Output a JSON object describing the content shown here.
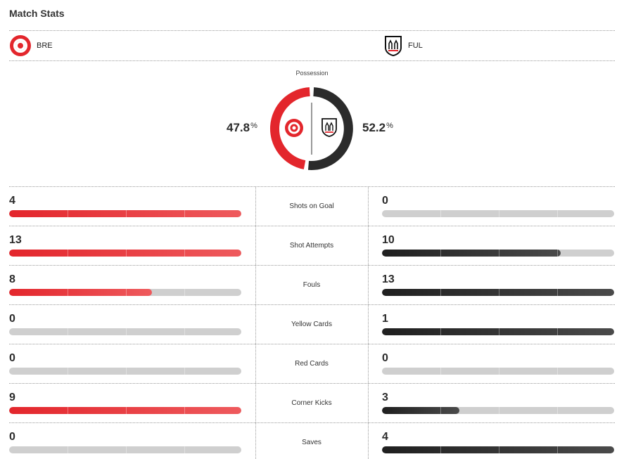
{
  "header": {
    "title": "Match Stats"
  },
  "teams": {
    "home": {
      "abbr": "BRE",
      "color": "#e3262c"
    },
    "away": {
      "abbr": "FUL",
      "color": "#2b2b2b"
    }
  },
  "possession": {
    "label": "Possession",
    "home_pct": "47.8",
    "away_pct": "52.2",
    "pct_symbol": "%",
    "home_value": 47.8,
    "away_value": 52.2
  },
  "stats": [
    {
      "label": "Shots on Goal",
      "home": "4",
      "away": "0",
      "home_fraction": 1.0,
      "away_fraction": 0.0
    },
    {
      "label": "Shot Attempts",
      "home": "13",
      "away": "10",
      "home_fraction": 1.0,
      "away_fraction": 0.77
    },
    {
      "label": "Fouls",
      "home": "8",
      "away": "13",
      "home_fraction": 0.615,
      "away_fraction": 1.0
    },
    {
      "label": "Yellow Cards",
      "home": "0",
      "away": "1",
      "home_fraction": 0.0,
      "away_fraction": 1.0
    },
    {
      "label": "Red Cards",
      "home": "0",
      "away": "0",
      "home_fraction": 0.0,
      "away_fraction": 0.0
    },
    {
      "label": "Corner Kicks",
      "home": "9",
      "away": "3",
      "home_fraction": 1.0,
      "away_fraction": 0.333
    },
    {
      "label": "Saves",
      "home": "0",
      "away": "4",
      "home_fraction": 0.0,
      "away_fraction": 1.0
    }
  ],
  "colors": {
    "home_bar": "#e3262c",
    "away_bar": "#2b2b2b",
    "empty_bar": "#cfcfcf"
  }
}
